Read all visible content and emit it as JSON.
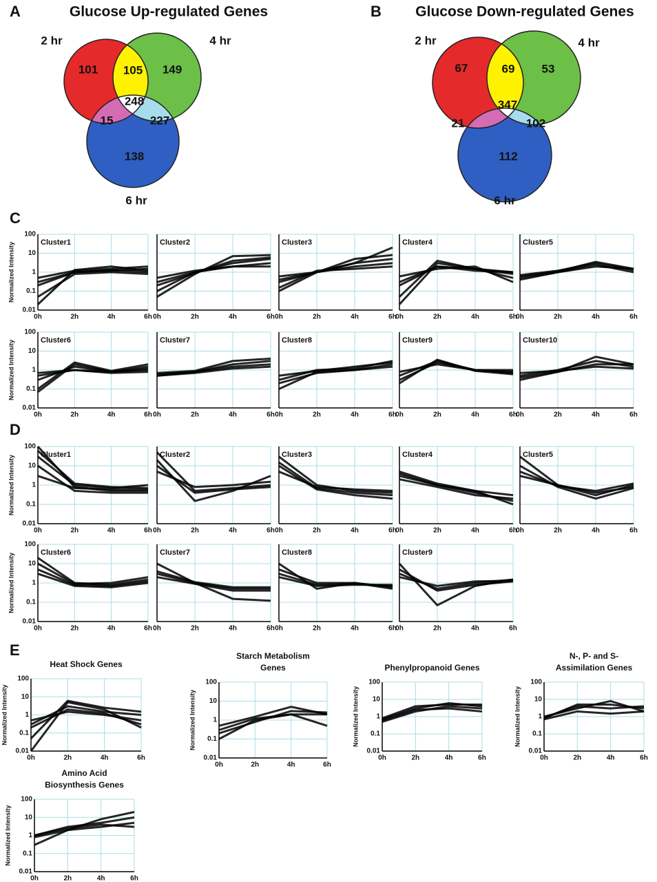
{
  "panel_labels": [
    "A",
    "B",
    "C",
    "D",
    "E"
  ],
  "line_axes": {
    "categories": [
      "0h",
      "2h",
      "4h",
      "6h"
    ],
    "ylim": [
      0.01,
      100
    ],
    "yticks": [
      0.01,
      0.1,
      1,
      10,
      100
    ],
    "y_label": "Normalized Intensity",
    "log_y": true,
    "grid": true,
    "grid_color": "#a8dde6",
    "line_color": "#000000"
  },
  "chart_data": [
    {
      "type": "venn",
      "title": "Glucose Up-regulated Genes",
      "sets": [
        {
          "name": "2 hr",
          "color": "#e42a2a"
        },
        {
          "name": "4 hr",
          "color": "#6cbf47"
        },
        {
          "name": "6 hr",
          "color": "#2f5fc2"
        }
      ],
      "overlap_colors": {
        "ab": "#fff200",
        "ac": "#d46cb4",
        "bc": "#a6dcec",
        "abc": "#ffffff"
      },
      "regions": {
        "a": 101,
        "ab": 105,
        "b": 149,
        "abc": 248,
        "ac": 15,
        "bc": 227,
        "c": 138
      }
    },
    {
      "type": "venn",
      "title": "Glucose Down-regulated Genes",
      "sets": [
        {
          "name": "2 hr",
          "color": "#e42a2a"
        },
        {
          "name": "4 hr",
          "color": "#6cbf47"
        },
        {
          "name": "6 hr",
          "color": "#2f5fc2"
        }
      ],
      "overlap_colors": {
        "ab": "#fff200",
        "ac": "#d46cb4",
        "bc": "#a6dcec",
        "abc": "#ffffff"
      },
      "regions": {
        "a": 67,
        "ab": 69,
        "b": 53,
        "abc": 347,
        "ac": 21,
        "bc": 102,
        "c": 112
      }
    },
    {
      "type": "line",
      "title": "Cluster1",
      "series": [
        {
          "values": [
            0.2,
            1,
            1.2,
            1.5
          ]
        },
        {
          "values": [
            0.5,
            1.2,
            1.5,
            2
          ]
        },
        {
          "values": [
            0.05,
            0.8,
            1,
            0.8
          ]
        },
        {
          "values": [
            0.02,
            1.3,
            2,
            1.2
          ]
        },
        {
          "values": [
            0.3,
            1,
            1.3,
            1
          ]
        }
      ]
    },
    {
      "type": "line",
      "title": "Cluster2",
      "series": [
        {
          "values": [
            0.1,
            1,
            2,
            3
          ]
        },
        {
          "values": [
            0.3,
            1,
            3,
            5
          ]
        },
        {
          "values": [
            0.05,
            0.8,
            7,
            8
          ]
        },
        {
          "values": [
            0.5,
            1.2,
            2,
            2
          ]
        },
        {
          "values": [
            0.2,
            0.9,
            4,
            6
          ]
        }
      ]
    },
    {
      "type": "line",
      "title": "Cluster3",
      "series": [
        {
          "values": [
            0.1,
            1,
            3,
            20
          ]
        },
        {
          "values": [
            0.3,
            1,
            2,
            3
          ]
        },
        {
          "values": [
            0.6,
            1,
            5,
            8
          ]
        },
        {
          "values": [
            0.15,
            1.2,
            1.5,
            2
          ]
        },
        {
          "values": [
            0.4,
            1,
            3,
            5
          ]
        }
      ]
    },
    {
      "type": "line",
      "title": "Cluster4",
      "series": [
        {
          "values": [
            0.05,
            4,
            1.5,
            0.5
          ]
        },
        {
          "values": [
            0.3,
            2,
            1.5,
            1
          ]
        },
        {
          "values": [
            0.6,
            1.5,
            2,
            0.3
          ]
        },
        {
          "values": [
            0.02,
            3,
            1.5,
            0.8
          ]
        },
        {
          "values": [
            0.2,
            2,
            1.2,
            1
          ]
        }
      ]
    },
    {
      "type": "line",
      "title": "Cluster5",
      "series": [
        {
          "values": [
            0.5,
            1,
            2,
            1.5
          ]
        },
        {
          "values": [
            0.7,
            1.2,
            3,
            1.3
          ]
        },
        {
          "values": [
            0.4,
            1,
            2.5,
            1
          ]
        },
        {
          "values": [
            0.6,
            1.1,
            3.5,
            1.5
          ]
        }
      ]
    },
    {
      "type": "line",
      "title": "Cluster6",
      "series": [
        {
          "values": [
            0.07,
            2,
            0.8,
            1.5
          ]
        },
        {
          "values": [
            0.3,
            1.5,
            0.8,
            1
          ]
        },
        {
          "values": [
            0.5,
            1,
            0.7,
            0.8
          ]
        },
        {
          "values": [
            0.1,
            2.5,
            0.9,
            2
          ]
        },
        {
          "values": [
            0.7,
            1,
            0.8,
            1.2
          ]
        }
      ]
    },
    {
      "type": "line",
      "title": "Cluster7",
      "series": [
        {
          "values": [
            0.5,
            0.8,
            2,
            3
          ]
        },
        {
          "values": [
            0.6,
            0.8,
            1.5,
            2
          ]
        },
        {
          "values": [
            0.7,
            0.9,
            3,
            4
          ]
        },
        {
          "values": [
            0.5,
            0.7,
            1.2,
            1.5
          ]
        }
      ]
    },
    {
      "type": "line",
      "title": "Cluster8",
      "series": [
        {
          "values": [
            0.1,
            0.8,
            1,
            2
          ]
        },
        {
          "values": [
            0.3,
            1,
            1.2,
            3
          ]
        },
        {
          "values": [
            0.5,
            0.9,
            1.5,
            2.5
          ]
        },
        {
          "values": [
            0.2,
            0.7,
            1,
            1.5
          ]
        }
      ]
    },
    {
      "type": "line",
      "title": "Cluster9",
      "series": [
        {
          "values": [
            0.3,
            2.5,
            1,
            0.8
          ]
        },
        {
          "values": [
            0.5,
            3,
            1,
            0.7
          ]
        },
        {
          "values": [
            0.8,
            2,
            1,
            1
          ]
        },
        {
          "values": [
            0.2,
            3.5,
            0.9,
            0.6
          ]
        }
      ]
    },
    {
      "type": "line",
      "title": "Cluster10",
      "series": [
        {
          "values": [
            0.3,
            0.8,
            2,
            2
          ]
        },
        {
          "values": [
            0.5,
            1,
            3,
            1.5
          ]
        },
        {
          "values": [
            0.7,
            0.9,
            1.5,
            1.2
          ]
        },
        {
          "values": [
            0.4,
            0.8,
            5,
            2
          ]
        }
      ]
    },
    {
      "type": "line",
      "title": "Cluster1",
      "series": [
        {
          "values": [
            100,
            0.8,
            0.5,
            0.5
          ]
        },
        {
          "values": [
            30,
            1,
            0.7,
            1
          ]
        },
        {
          "values": [
            10,
            0.5,
            0.4,
            0.4
          ]
        },
        {
          "values": [
            3,
            0.7,
            0.6,
            0.6
          ]
        },
        {
          "values": [
            60,
            1.2,
            0.8,
            0.7
          ]
        }
      ]
    },
    {
      "type": "line",
      "title": "Cluster2",
      "series": [
        {
          "values": [
            50,
            0.5,
            0.7,
            1
          ]
        },
        {
          "values": [
            20,
            0.15,
            0.5,
            3
          ]
        },
        {
          "values": [
            5,
            0.8,
            1,
            1.5
          ]
        },
        {
          "values": [
            10,
            0.4,
            0.6,
            0.8
          ]
        }
      ]
    },
    {
      "type": "line",
      "title": "Cluster3",
      "series": [
        {
          "values": [
            30,
            1,
            0.5,
            0.4
          ]
        },
        {
          "values": [
            10,
            0.6,
            0.3,
            0.2
          ]
        },
        {
          "values": [
            5,
            0.8,
            0.6,
            0.5
          ]
        },
        {
          "values": [
            15,
            0.7,
            0.4,
            0.3
          ]
        }
      ]
    },
    {
      "type": "line",
      "title": "Cluster4",
      "series": [
        {
          "values": [
            3,
            1,
            0.4,
            0.15
          ]
        },
        {
          "values": [
            5,
            1.2,
            0.5,
            0.1
          ]
        },
        {
          "values": [
            2,
            0.8,
            0.3,
            0.2
          ]
        },
        {
          "values": [
            4,
            1,
            0.5,
            0.3
          ]
        }
      ]
    },
    {
      "type": "line",
      "title": "Cluster5",
      "series": [
        {
          "values": [
            30,
            1,
            0.3,
            1
          ]
        },
        {
          "values": [
            10,
            0.8,
            0.2,
            0.7
          ]
        },
        {
          "values": [
            5,
            0.9,
            0.5,
            1.2
          ]
        },
        {
          "values": [
            3,
            1,
            0.4,
            0.8
          ]
        }
      ]
    },
    {
      "type": "line",
      "title": "Cluster6",
      "series": [
        {
          "values": [
            20,
            1,
            0.8,
            1.5
          ]
        },
        {
          "values": [
            5,
            0.8,
            0.7,
            1.2
          ]
        },
        {
          "values": [
            10,
            0.9,
            1,
            2
          ]
        },
        {
          "values": [
            3,
            0.7,
            0.6,
            1
          ]
        }
      ]
    },
    {
      "type": "line",
      "title": "Cluster7",
      "series": [
        {
          "values": [
            10,
            1,
            0.15,
            0.12
          ]
        },
        {
          "values": [
            3,
            1,
            0.5,
            0.5
          ]
        },
        {
          "values": [
            2,
            0.9,
            0.4,
            0.4
          ]
        },
        {
          "values": [
            4,
            1.1,
            0.6,
            0.6
          ]
        }
      ]
    },
    {
      "type": "line",
      "title": "Cluster8",
      "series": [
        {
          "values": [
            10,
            0.5,
            1,
            0.5
          ]
        },
        {
          "values": [
            3,
            0.8,
            0.9,
            0.7
          ]
        },
        {
          "values": [
            5,
            1,
            1,
            0.6
          ]
        },
        {
          "values": [
            2,
            0.7,
            0.8,
            0.8
          ]
        }
      ]
    },
    {
      "type": "line",
      "title": "Cluster9",
      "series": [
        {
          "values": [
            10,
            0.07,
            0.7,
            1.5
          ]
        },
        {
          "values": [
            3,
            0.5,
            1,
            1.5
          ]
        },
        {
          "values": [
            2,
            0.7,
            1.2,
            1.3
          ]
        },
        {
          "values": [
            5,
            0.4,
            0.8,
            1.2
          ]
        }
      ]
    },
    {
      "type": "line",
      "title": [
        "Heat Shock Genes"
      ],
      "series": [
        {
          "values": [
            0.01,
            5,
            2,
            0.2
          ]
        },
        {
          "values": [
            0.3,
            3,
            1.5,
            1
          ]
        },
        {
          "values": [
            0.5,
            1.5,
            1,
            0.5
          ]
        },
        {
          "values": [
            0.05,
            6,
            2.5,
            1.5
          ]
        },
        {
          "values": [
            0.2,
            2,
            1.2,
            0.3
          ]
        }
      ]
    },
    {
      "type": "line",
      "title": [
        "Starch Metabolism",
        "Genes"
      ],
      "series": [
        {
          "values": [
            0.1,
            1,
            2,
            2
          ]
        },
        {
          "values": [
            0.5,
            1.5,
            5,
            2
          ]
        },
        {
          "values": [
            0.3,
            1.2,
            2,
            0.5
          ]
        },
        {
          "values": [
            0.2,
            0.8,
            3,
            2.5
          ]
        }
      ]
    },
    {
      "type": "line",
      "title": [
        "Phenylpropanoid Genes"
      ],
      "series": [
        {
          "values": [
            0.5,
            2,
            4,
            3
          ]
        },
        {
          "values": [
            0.8,
            4,
            5,
            5
          ]
        },
        {
          "values": [
            0.6,
            2.5,
            3,
            2
          ]
        },
        {
          "values": [
            0.7,
            3,
            6,
            4
          ]
        }
      ]
    },
    {
      "type": "line",
      "title": [
        "N-, P- and S-",
        "Assimilation Genes"
      ],
      "series": [
        {
          "values": [
            0.8,
            5,
            5,
            3
          ]
        },
        {
          "values": [
            1,
            3,
            8,
            2
          ]
        },
        {
          "values": [
            0.7,
            2,
            1.5,
            2
          ]
        },
        {
          "values": [
            0.9,
            4,
            3,
            4
          ]
        }
      ]
    },
    {
      "type": "line",
      "title": [
        "Amino Acid",
        "Biosynthesis Genes"
      ],
      "series": [
        {
          "values": [
            1,
            3,
            5,
            10
          ]
        },
        {
          "values": [
            0.8,
            2,
            3,
            5
          ]
        },
        {
          "values": [
            0.3,
            2,
            8,
            20
          ]
        },
        {
          "values": [
            1,
            2.5,
            4,
            3
          ]
        }
      ]
    }
  ]
}
